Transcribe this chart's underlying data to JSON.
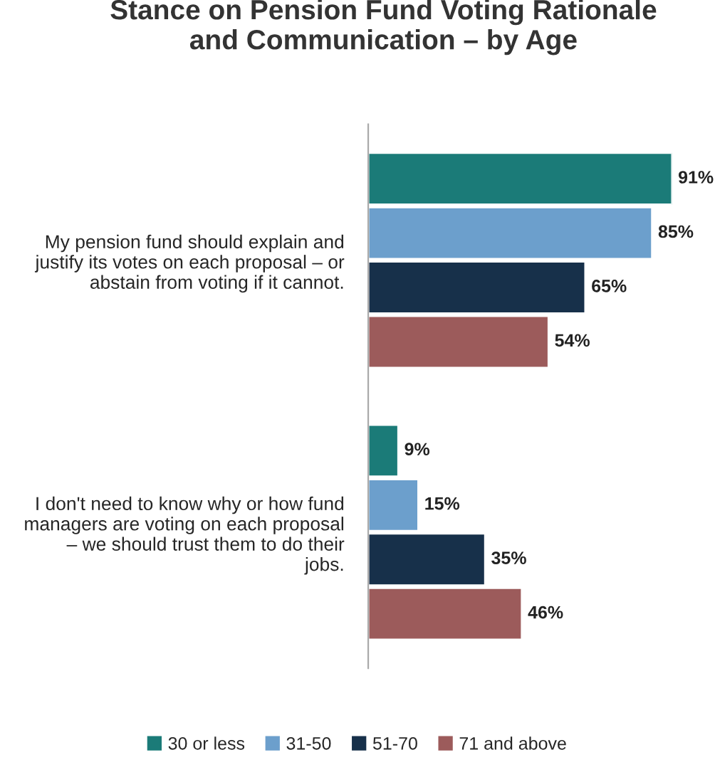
{
  "chart_data": {
    "type": "bar",
    "orientation": "horizontal",
    "title": "Stance on Pension Fund Voting Rationale\nand Communication – by Age",
    "categories": [
      "My pension fund should explain and\njustify its votes on each proposal – or\nabstain from voting if it cannot.",
      "I don't need to know why or how fund\nmanagers are voting on each proposal\n– we should trust them to do their\njobs."
    ],
    "series": [
      {
        "name": "30 or less",
        "color": "#1b7b78",
        "values": [
          91,
          9
        ],
        "value_labels": [
          "91%",
          "9%"
        ]
      },
      {
        "name": "31-50",
        "color": "#6c9fcc",
        "values": [
          85,
          15
        ],
        "value_labels": [
          "85%",
          "15%"
        ]
      },
      {
        "name": "51-70",
        "color": "#17304a",
        "values": [
          65,
          35
        ],
        "value_labels": [
          "65%",
          "35%"
        ]
      },
      {
        "name": "71 and above",
        "color": "#9c5b5b",
        "values": [
          54,
          46
        ],
        "value_labels": [
          "54%",
          "46%"
        ]
      }
    ],
    "legend": "bottom",
    "grid": false
  }
}
